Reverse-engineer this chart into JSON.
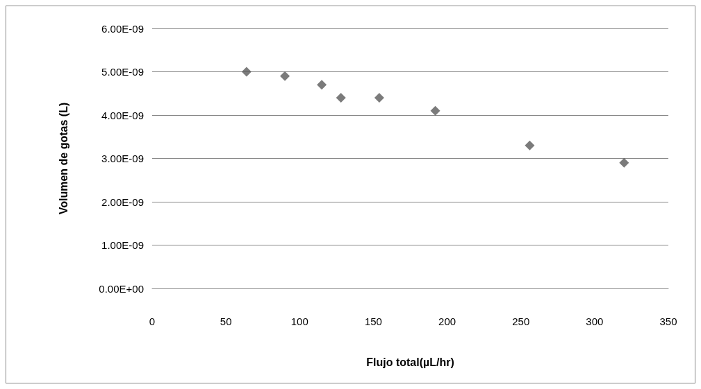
{
  "chart_data": {
    "type": "scatter",
    "xlabel": "Flujo total(µL/hr)",
    "ylabel": "Volumen de gotas (L)",
    "x": [
      64,
      90,
      115,
      128,
      154,
      192,
      256,
      320
    ],
    "values": [
      5e-09,
      4.9e-09,
      4.7e-09,
      4.4e-09,
      4.4e-09,
      4.1e-09,
      3.3e-09,
      2.9e-09
    ],
    "color": "#5a5a5a",
    "marker": "diamond",
    "grid": "y",
    "xlim": [
      0,
      350
    ],
    "xticks": [
      0,
      50,
      100,
      150,
      200,
      250,
      300,
      350
    ],
    "ylim": [
      0,
      6e-09
    ],
    "yticks": [
      {
        "value": 0,
        "label": "0.00E+00"
      },
      {
        "value": 1e-09,
        "label": "1.00E-09"
      },
      {
        "value": 2e-09,
        "label": "2.00E-09"
      },
      {
        "value": 3e-09,
        "label": "3.00E-09"
      },
      {
        "value": 4e-09,
        "label": "4.00E-09"
      },
      {
        "value": 5e-09,
        "label": "5.00E-09"
      },
      {
        "value": 6e-09,
        "label": "6.00E-09"
      }
    ]
  }
}
